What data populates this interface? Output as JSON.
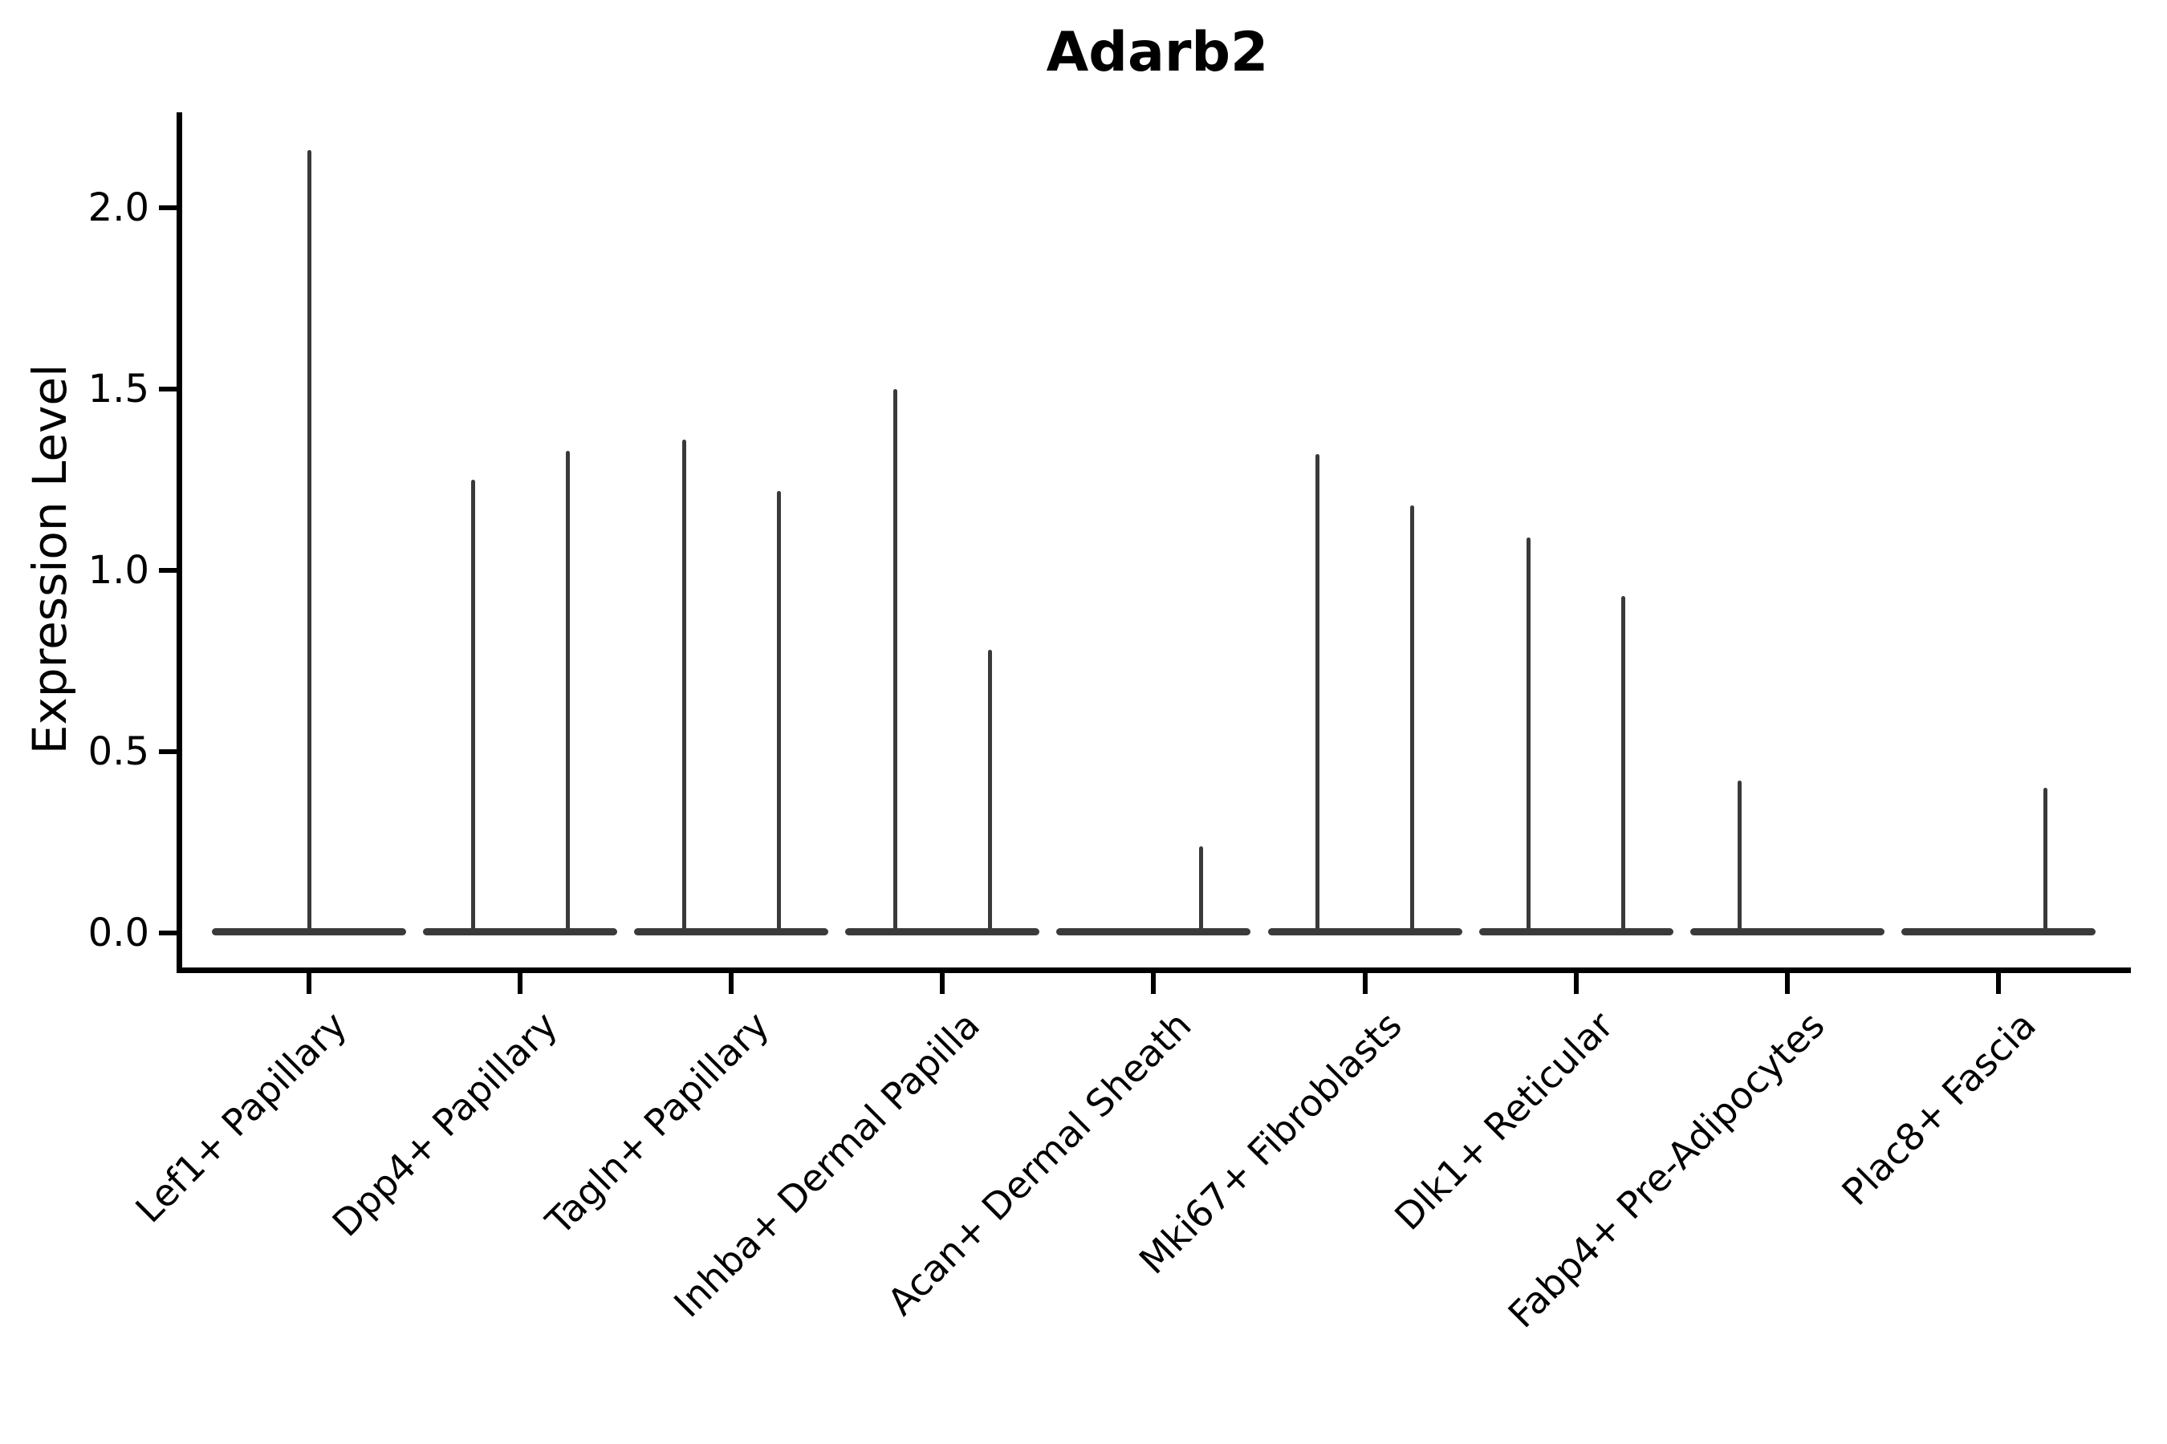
{
  "chart_data": {
    "type": "violin",
    "title": "Adarb2",
    "ylabel": "Expression Level",
    "xlabel": "",
    "yticks": [
      2.0,
      1.5,
      1.0,
      0.5,
      0.0
    ],
    "ytick_labels": [
      "2.0",
      "1.5",
      "1.0",
      "0.5",
      "0.0"
    ],
    "ylim": [
      -0.1,
      2.27
    ],
    "grid": false,
    "legend": null,
    "categories": [
      "Lef1+ Papillary",
      "Dpp4+ Papillary",
      "Tagln+ Papillary",
      "Inhba+ Dermal Papilla",
      "Acan+ Dermal Sheath",
      "Mki67+ Fibroblasts",
      "Dlk1+ Reticular",
      "Fabp4+ Pre-Adipocytes",
      "Plac8+ Fascia"
    ],
    "violins": [
      {
        "category": "Lef1+ Papillary",
        "spikes": [
          {
            "side": "center",
            "max": 2.16
          }
        ]
      },
      {
        "category": "Dpp4+ Papillary",
        "spikes": [
          {
            "side": "left",
            "max": 1.25
          },
          {
            "side": "right",
            "max": 1.33
          }
        ]
      },
      {
        "category": "Tagln+ Papillary",
        "spikes": [
          {
            "side": "left",
            "max": 1.36
          },
          {
            "side": "right",
            "max": 1.22
          }
        ]
      },
      {
        "category": "Inhba+ Dermal Papilla",
        "spikes": [
          {
            "side": "left",
            "max": 1.5
          },
          {
            "side": "right",
            "max": 0.78
          }
        ]
      },
      {
        "category": "Acan+ Dermal Sheath",
        "spikes": [
          {
            "side": "right",
            "max": 0.24
          }
        ]
      },
      {
        "category": "Mki67+ Fibroblasts",
        "spikes": [
          {
            "side": "left",
            "max": 1.32
          },
          {
            "side": "right",
            "max": 1.18
          }
        ]
      },
      {
        "category": "Dlk1+ Reticular",
        "spikes": [
          {
            "side": "left",
            "max": 1.09
          },
          {
            "side": "right",
            "max": 0.93
          }
        ]
      },
      {
        "category": "Fabp4+ Pre-Adipocytes",
        "spikes": [
          {
            "side": "left",
            "max": 0.42
          }
        ]
      },
      {
        "category": "Plac8+ Fascia",
        "spikes": [
          {
            "side": "right",
            "max": 0.4
          }
        ]
      }
    ],
    "colors": {
      "violin": "#3a3a3a",
      "axis": "#000000",
      "text": "#000000",
      "background": "#ffffff"
    }
  }
}
